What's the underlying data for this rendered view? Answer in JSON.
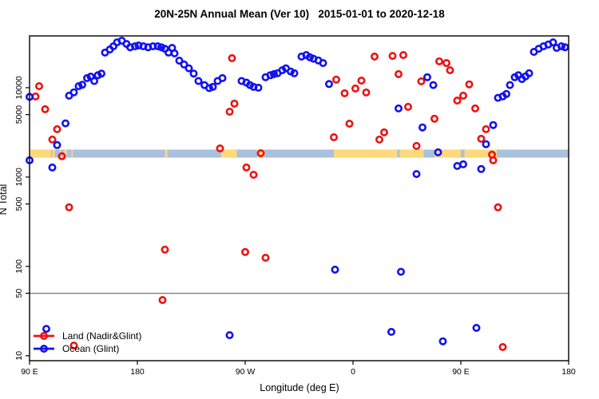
{
  "chart_data": {
    "type": "scatter",
    "title": "20N-25N Annual Mean (Ver 10)   2015-01-01 to 2020-12-18",
    "xlabel": "Longitude (deg E)",
    "ylabel": "N Total",
    "x_axis": {
      "note": "longitude axis wraps eastward from 90E; positions stored as degrees travelled from 90E (0-450)",
      "range_deg": [
        0,
        450
      ],
      "ticks": [
        {
          "label": "90 E",
          "deg": 0
        },
        {
          "label": "180",
          "deg": 90
        },
        {
          "label": "90 W",
          "deg": 180
        },
        {
          "label": "0",
          "deg": 270
        },
        {
          "label": "90 E",
          "deg": 360
        },
        {
          "label": "180",
          "deg": 450
        }
      ]
    },
    "y_axis": {
      "scale": "log",
      "range": [
        8.8,
        38000
      ],
      "ticks": [
        {
          "label": "10000",
          "value": 10000
        },
        {
          "label": "5000",
          "value": 5000
        },
        {
          "label": "1000",
          "value": 1000
        },
        {
          "label": "500",
          "value": 500
        },
        {
          "label": "100",
          "value": 100
        },
        {
          "label": "50",
          "value": 50
        },
        {
          "label": "10",
          "value": 10
        }
      ]
    },
    "reference_line": {
      "value": 50,
      "color": "#7f7f7f"
    },
    "surface_strip": {
      "n_range": [
        1650,
        2030
      ],
      "ocean_color": "#A9C0DE",
      "land_color": "#FDD97B",
      "land_segments_deg": [
        [
          0,
          18
        ],
        [
          19,
          21
        ],
        [
          25,
          26
        ],
        [
          29,
          31
        ],
        [
          35,
          36
        ],
        [
          113,
          115
        ],
        [
          160,
          173
        ],
        [
          190,
          196
        ],
        [
          254,
          307
        ],
        [
          309,
          329
        ],
        [
          338,
          360
        ],
        [
          363,
          390
        ]
      ]
    },
    "legend": {
      "position": "bottom-left"
    },
    "series": [
      {
        "name": "Land (Nadir&Glint)",
        "color": "#EE1111",
        "points": [
          [
            8,
            10400
          ],
          [
            5,
            7980
          ],
          [
            13,
            5740
          ],
          [
            23,
            3430
          ],
          [
            19,
            2630
          ],
          [
            27,
            1710
          ],
          [
            33,
            458
          ],
          [
            113,
            154
          ],
          [
            111,
            42
          ],
          [
            169,
            21400
          ],
          [
            171,
            6630
          ],
          [
            167,
            5390
          ],
          [
            159,
            2090
          ],
          [
            193,
            1850
          ],
          [
            181,
            1280
          ],
          [
            187,
            1060
          ],
          [
            180,
            145
          ],
          [
            197,
            125
          ],
          [
            256,
            12300
          ],
          [
            263,
            8660
          ],
          [
            272,
            9800
          ],
          [
            277,
            12000
          ],
          [
            281,
            8840
          ],
          [
            288,
            22300
          ],
          [
            303,
            22700
          ],
          [
            312,
            23200
          ],
          [
            308,
            14200
          ],
          [
            316,
            6100
          ],
          [
            327,
            11800
          ],
          [
            267,
            3960
          ],
          [
            254,
            2790
          ],
          [
            292,
            2630
          ],
          [
            296,
            3160
          ],
          [
            323,
            2230
          ],
          [
            338,
            4490
          ],
          [
            342,
            19700
          ],
          [
            348,
            18900
          ],
          [
            351,
            15700
          ],
          [
            357,
            7190
          ],
          [
            362,
            8140
          ],
          [
            367,
            10900
          ],
          [
            372,
            5860
          ],
          [
            377,
            2680
          ],
          [
            381,
            3430
          ],
          [
            386,
            1780
          ],
          [
            387,
            1540
          ],
          [
            391,
            458
          ],
          [
            395,
            12.5
          ],
          [
            37,
            13
          ]
        ]
      },
      {
        "name": "Ocean (Glint)",
        "color": "#1111EE",
        "points": [
          [
            0,
            7900
          ],
          [
            0,
            1540
          ],
          [
            19,
            1280
          ],
          [
            30,
            3990
          ],
          [
            23,
            2280
          ],
          [
            14,
            20
          ],
          [
            33,
            8150
          ],
          [
            37,
            8870
          ],
          [
            41,
            10400
          ],
          [
            44,
            10800
          ],
          [
            48,
            12800
          ],
          [
            51,
            13300
          ],
          [
            54,
            11900
          ],
          [
            57,
            13800
          ],
          [
            60,
            14400
          ],
          [
            63,
            24700
          ],
          [
            67,
            26800
          ],
          [
            70,
            29100
          ],
          [
            73,
            32200
          ],
          [
            77,
            33600
          ],
          [
            81,
            30900
          ],
          [
            84,
            28400
          ],
          [
            88,
            29100
          ],
          [
            91,
            29700
          ],
          [
            95,
            29100
          ],
          [
            99,
            28400
          ],
          [
            103,
            29100
          ],
          [
            107,
            29100
          ],
          [
            110,
            28400
          ],
          [
            113,
            27300
          ],
          [
            116,
            24700
          ],
          [
            119,
            27900
          ],
          [
            121,
            24200
          ],
          [
            125,
            20100
          ],
          [
            129,
            18200
          ],
          [
            133,
            16500
          ],
          [
            137,
            14400
          ],
          [
            141,
            11900
          ],
          [
            146,
            10700
          ],
          [
            150,
            9900
          ],
          [
            153,
            10200
          ],
          [
            157,
            11900
          ],
          [
            161,
            12800
          ],
          [
            177,
            11900
          ],
          [
            181,
            11400
          ],
          [
            184,
            10700
          ],
          [
            187,
            10200
          ],
          [
            191,
            10000
          ],
          [
            197,
            13100
          ],
          [
            201,
            13800
          ],
          [
            204,
            14200
          ],
          [
            207,
            14500
          ],
          [
            211,
            15700
          ],
          [
            214,
            16500
          ],
          [
            218,
            15200
          ],
          [
            221,
            14500
          ],
          [
            227,
            22300
          ],
          [
            231,
            23200
          ],
          [
            234,
            21900
          ],
          [
            237,
            21100
          ],
          [
            241,
            20200
          ],
          [
            245,
            18900
          ],
          [
            250,
            11000
          ],
          [
            332,
            13100
          ],
          [
            337,
            10700
          ],
          [
            308,
            5860
          ],
          [
            328,
            3590
          ],
          [
            341,
            1890
          ],
          [
            357,
            1330
          ],
          [
            362,
            1390
          ],
          [
            323,
            1080
          ],
          [
            377,
            1230
          ],
          [
            381,
            2330
          ],
          [
            387,
            3820
          ],
          [
            391,
            7700
          ],
          [
            395,
            8000
          ],
          [
            398,
            8500
          ],
          [
            401,
            10700
          ],
          [
            405,
            13100
          ],
          [
            408,
            13800
          ],
          [
            411,
            12500
          ],
          [
            414,
            13400
          ],
          [
            417,
            14500
          ],
          [
            421,
            25200
          ],
          [
            425,
            27300
          ],
          [
            429,
            29100
          ],
          [
            433,
            30400
          ],
          [
            437,
            32200
          ],
          [
            440,
            27900
          ],
          [
            444,
            29100
          ],
          [
            447,
            28400
          ],
          [
            255,
            92
          ],
          [
            310,
            87
          ],
          [
            302,
            18.5
          ],
          [
            345,
            14.5
          ],
          [
            373,
            20.5
          ],
          [
            167,
            17
          ]
        ]
      }
    ]
  }
}
